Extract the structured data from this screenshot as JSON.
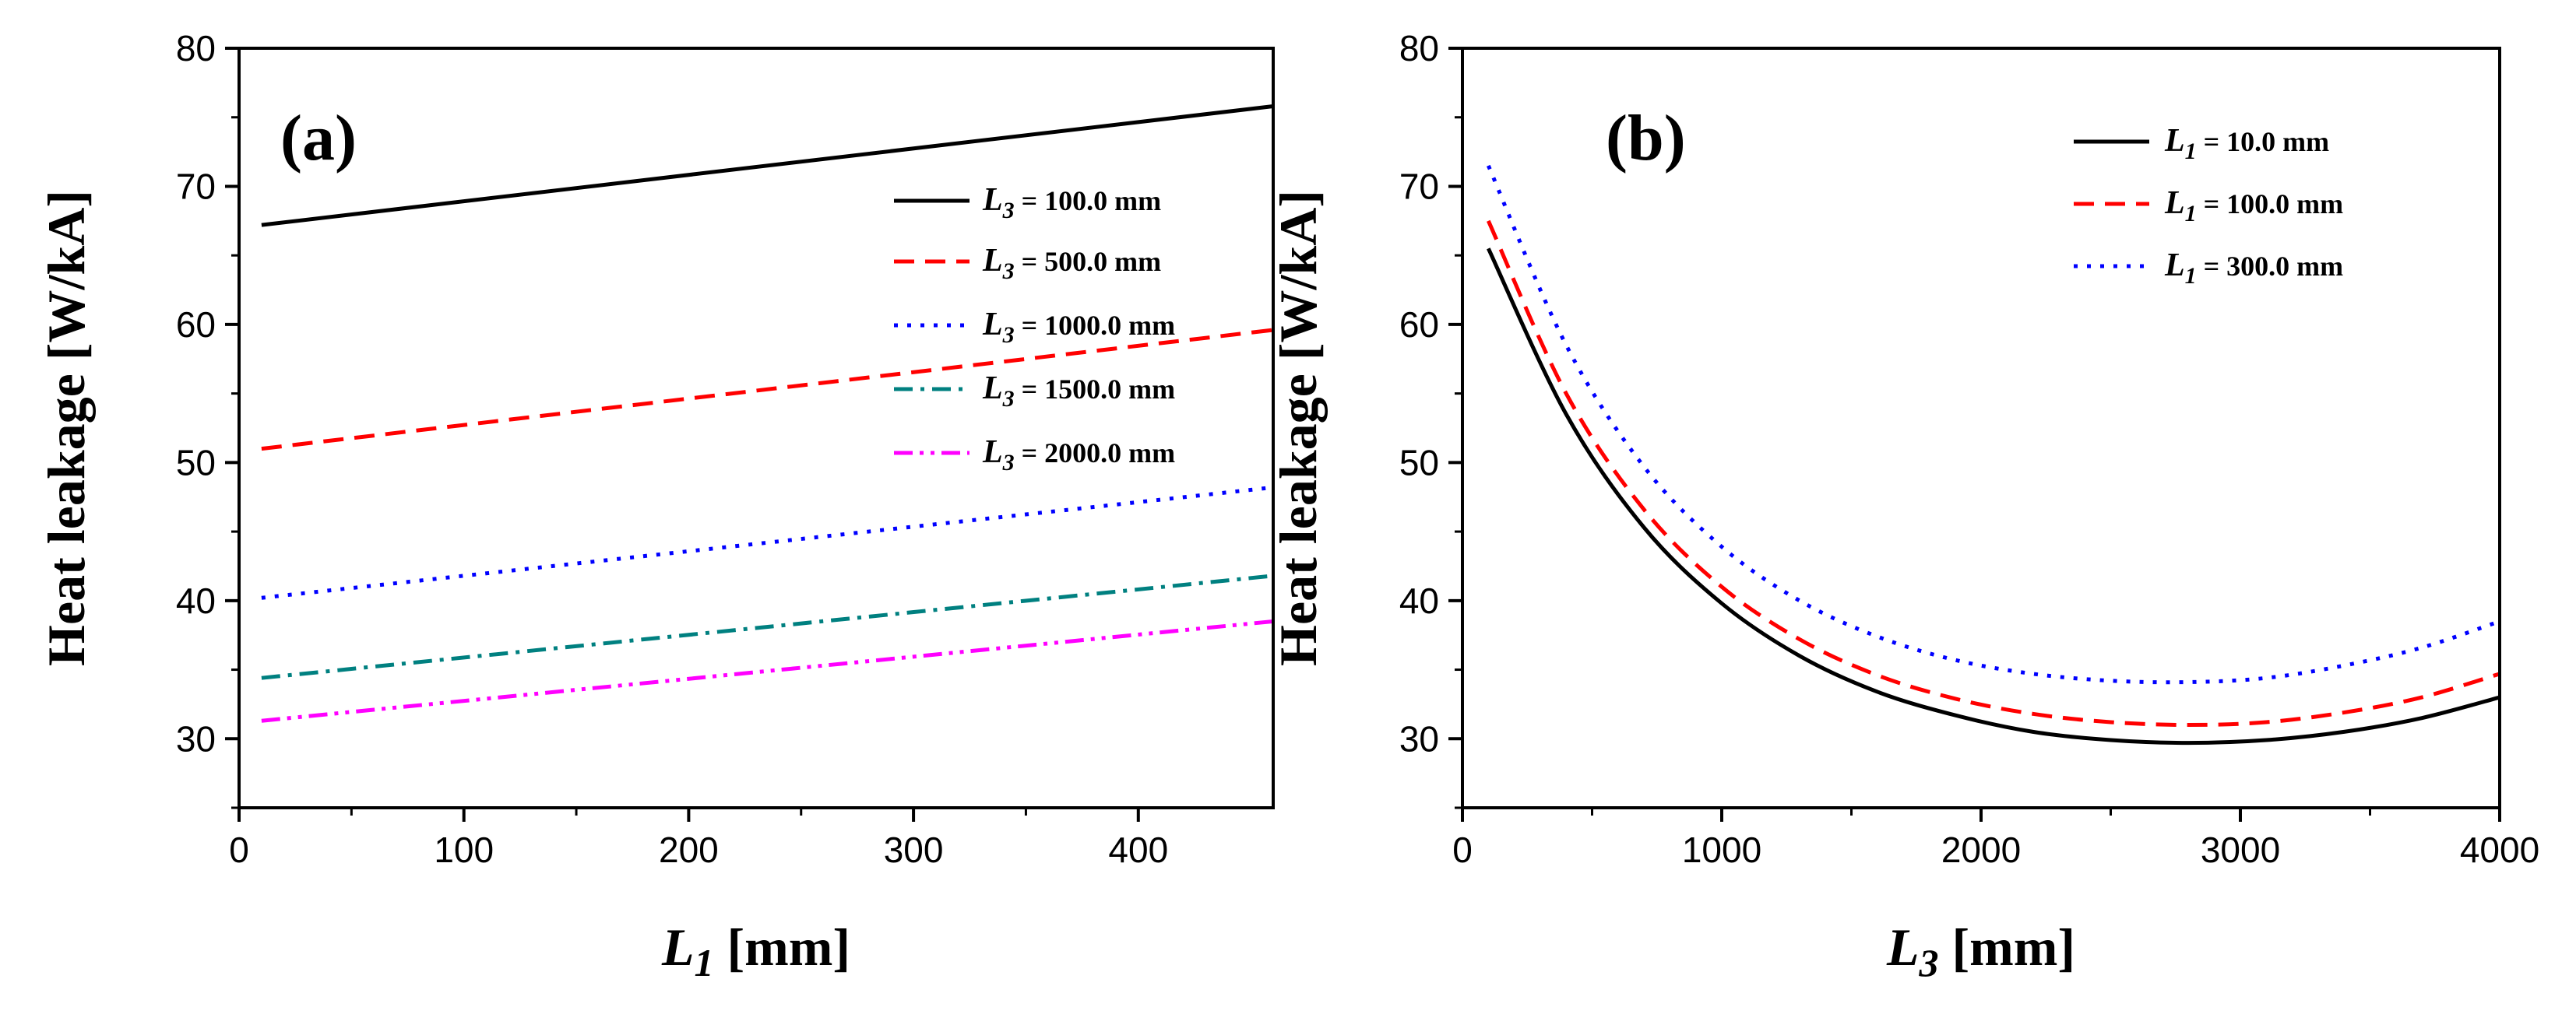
{
  "chart_data": [
    {
      "type": "line",
      "panel_label": "(a)",
      "ylabel": "Heat leakage [W/kA]",
      "xlabel": {
        "symbol": "L",
        "subscript": "1",
        "unit": " [mm]"
      },
      "xlim": [
        0,
        460
      ],
      "ylim": [
        25,
        80
      ],
      "xticks": [
        "0",
        "100",
        "200",
        "300",
        "400"
      ],
      "yticks": [
        "30",
        "40",
        "50",
        "60",
        "70",
        "80"
      ],
      "legend_position": "right",
      "series": [
        {
          "symbol": "L",
          "subscript": "3",
          "label": " = 100.0 mm",
          "color": "#000000",
          "style": "solid",
          "x": [
            10,
            460
          ],
          "y": [
            67.2,
            75.8
          ]
        },
        {
          "symbol": "L",
          "subscript": "3",
          "label": " = 500.0 mm",
          "color": "#ff0000",
          "style": "dash",
          "x": [
            10,
            460
          ],
          "y": [
            51.0,
            59.6
          ]
        },
        {
          "symbol": "L",
          "subscript": "3",
          "label": " = 1000.0 mm",
          "color": "#0000ff",
          "style": "dot",
          "x": [
            10,
            460
          ],
          "y": [
            40.2,
            48.2
          ]
        },
        {
          "symbol": "L",
          "subscript": "3",
          "label": " = 1500.0 mm",
          "color": "#008080",
          "style": "dashdot",
          "x": [
            10,
            460
          ],
          "y": [
            34.4,
            41.8
          ]
        },
        {
          "symbol": "L",
          "subscript": "3",
          "label": " = 2000.0 mm",
          "color": "#ff00ff",
          "style": "dashdotdot",
          "x": [
            10,
            460
          ],
          "y": [
            31.3,
            38.5
          ]
        }
      ]
    },
    {
      "type": "line",
      "panel_label": "(b)",
      "ylabel": "Heat leakage [W/kA]",
      "xlabel": {
        "symbol": "L",
        "subscript": "3",
        "unit": " [mm]"
      },
      "xlim": [
        0,
        4000
      ],
      "ylim": [
        25,
        80
      ],
      "xticks": [
        "0",
        "1000",
        "2000",
        "3000",
        "4000"
      ],
      "yticks": [
        "30",
        "40",
        "50",
        "60",
        "70",
        "80"
      ],
      "legend_position": "top-right",
      "series": [
        {
          "symbol": "L",
          "subscript": "1",
          "label": " = 10.0 mm",
          "color": "#000000",
          "style": "solid",
          "x": [
            100,
            400,
            700,
            1000,
            1300,
            1600,
            1900,
            2200,
            2500,
            2800,
            3100,
            3400,
            3700,
            4000
          ],
          "y": [
            65.5,
            53.5,
            45.3,
            39.8,
            36.0,
            33.4,
            31.7,
            30.5,
            29.9,
            29.7,
            29.9,
            30.5,
            31.5,
            33.0
          ]
        },
        {
          "symbol": "L",
          "subscript": "1",
          "label": " = 100.0 mm",
          "color": "#ff0000",
          "style": "dash",
          "x": [
            100,
            400,
            700,
            1000,
            1300,
            1600,
            1900,
            2200,
            2500,
            2800,
            3100,
            3400,
            3700,
            4000
          ],
          "y": [
            67.5,
            55.0,
            46.6,
            41.0,
            37.2,
            34.6,
            32.9,
            31.8,
            31.2,
            31.0,
            31.2,
            31.9,
            33.0,
            34.7
          ]
        },
        {
          "symbol": "L",
          "subscript": "1",
          "label": " = 300.0 mm",
          "color": "#0000ff",
          "style": "dot",
          "x": [
            100,
            400,
            700,
            1000,
            1300,
            1600,
            1900,
            2200,
            2500,
            2800,
            3100,
            3400,
            3700,
            4000
          ],
          "y": [
            71.5,
            58.5,
            49.7,
            43.9,
            40.0,
            37.4,
            35.7,
            34.7,
            34.2,
            34.1,
            34.4,
            35.3,
            36.6,
            38.5
          ]
        }
      ]
    }
  ]
}
